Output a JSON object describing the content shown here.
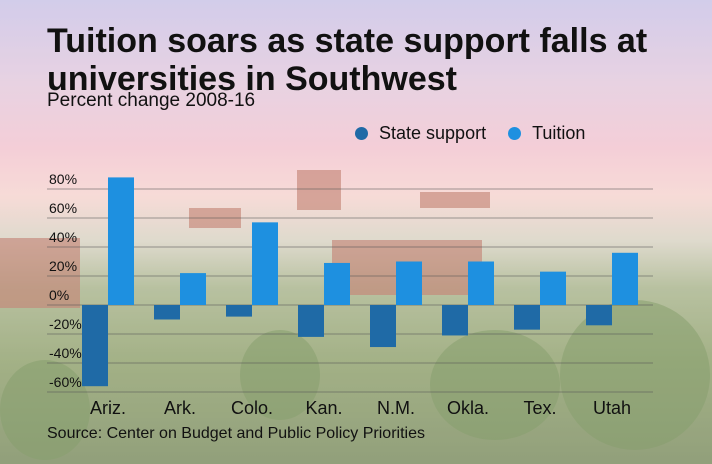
{
  "title": "Tuition soars as state support falls at universities in Southwest",
  "subtitle": "Percent change 2008-16",
  "source": "Source: Center on Budget and Public Policy Priorities",
  "legend": [
    {
      "label": "State support",
      "color": "#1f6aa6"
    },
    {
      "label": "Tuition",
      "color": "#1e90e0"
    }
  ],
  "chart_data": {
    "type": "bar",
    "categories": [
      "Ariz.",
      "Ark.",
      "Colo.",
      "Kan.",
      "N.M.",
      "Okla.",
      "Tex.",
      "Utah"
    ],
    "series": [
      {
        "name": "State support",
        "values": [
          -56,
          -10,
          -8,
          -22,
          -29,
          -21,
          -17,
          -14
        ],
        "color": "#1f6aa6"
      },
      {
        "name": "Tuition",
        "values": [
          88,
          22,
          57,
          29,
          30,
          30,
          23,
          36
        ],
        "color": "#1e90e0"
      }
    ],
    "yticks": [
      -60,
      -40,
      -20,
      0,
      20,
      40,
      60,
      80
    ],
    "ytick_labels": [
      "-60%",
      "-40%",
      "-20%",
      "0%",
      "20%",
      "40%",
      "60%",
      "80%"
    ],
    "ylim": [
      -60,
      80
    ],
    "grid": true,
    "legend_position": "top-right",
    "xlabel": "",
    "ylabel": ""
  }
}
